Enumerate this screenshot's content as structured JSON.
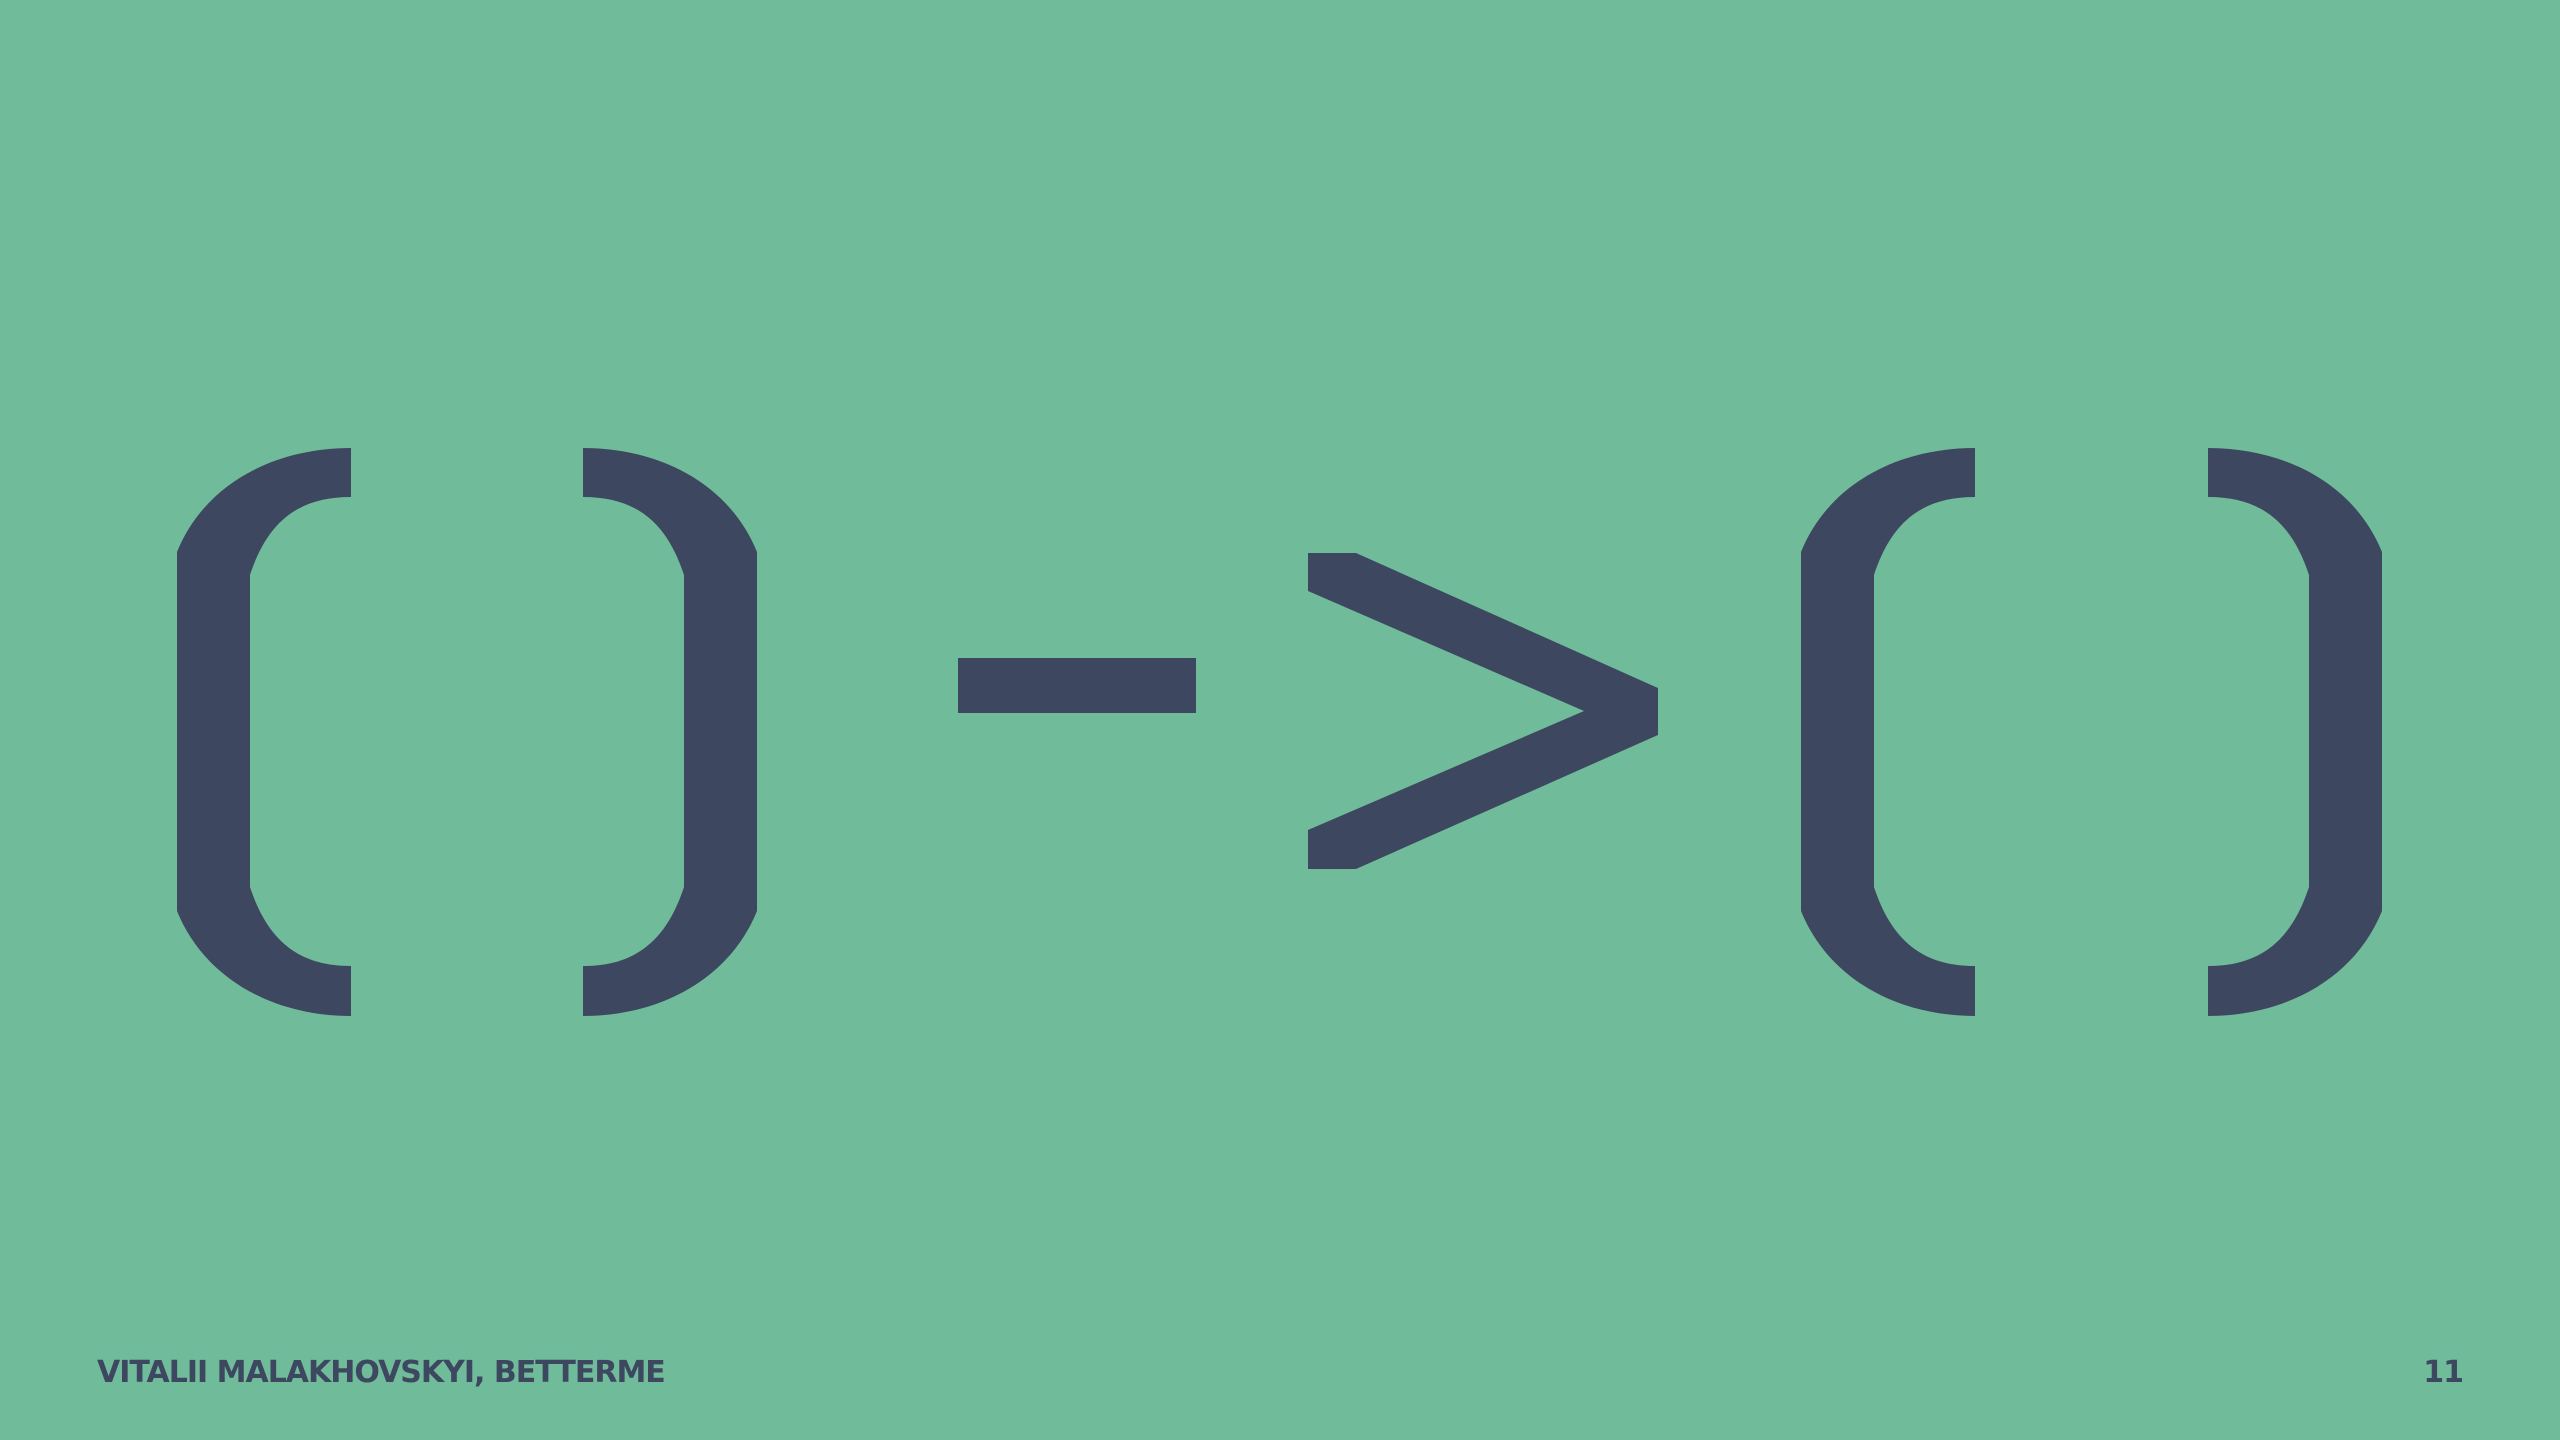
{
  "slide": {
    "main_text": "()->()",
    "author": "VITALII MALAKHOVSKYI, BETTERME",
    "page_number": "11"
  },
  "colors": {
    "background": "#70bb9a",
    "foreground": "#3d4760"
  }
}
